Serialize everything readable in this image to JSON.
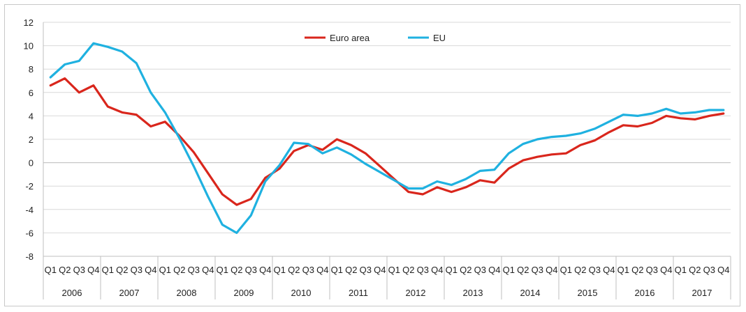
{
  "chart_data": {
    "type": "line",
    "title": "",
    "xlabel": "",
    "ylabel": "",
    "ylim": [
      -8,
      12
    ],
    "yticks": [
      -8,
      -6,
      -4,
      -2,
      0,
      2,
      4,
      6,
      8,
      10,
      12
    ],
    "grid": "horizontal",
    "legend_position": "top-center",
    "quarters": [
      "Q1",
      "Q2",
      "Q3",
      "Q4"
    ],
    "years": [
      "2006",
      "2007",
      "2008",
      "2009",
      "2010",
      "2011",
      "2012",
      "2013",
      "2014",
      "2015",
      "2016",
      "2017"
    ],
    "series": [
      {
        "name": "Euro area",
        "color": "#d9261c",
        "values": [
          6.6,
          7.2,
          6.0,
          6.6,
          4.8,
          4.3,
          4.1,
          3.1,
          3.5,
          2.3,
          0.9,
          -0.9,
          -2.7,
          -3.6,
          -3.1,
          -1.3,
          -0.5,
          1.0,
          1.5,
          1.1,
          2.0,
          1.5,
          0.8,
          -0.3,
          -1.4,
          -2.5,
          -2.7,
          -2.1,
          -2.5,
          -2.1,
          -1.5,
          -1.7,
          -0.5,
          0.2,
          0.5,
          0.7,
          0.8,
          1.5,
          1.9,
          2.6,
          3.2,
          3.1,
          3.4,
          4.0,
          3.8,
          3.7,
          4.0,
          4.2
        ]
      },
      {
        "name": "EU",
        "color": "#1fb1e0",
        "values": [
          7.3,
          8.4,
          8.7,
          10.2,
          9.9,
          9.5,
          8.5,
          6.0,
          4.3,
          2.1,
          -0.3,
          -2.9,
          -5.3,
          -6.0,
          -4.5,
          -1.6,
          -0.2,
          1.7,
          1.6,
          0.8,
          1.3,
          0.7,
          -0.1,
          -0.8,
          -1.5,
          -2.2,
          -2.2,
          -1.6,
          -1.9,
          -1.4,
          -0.7,
          -0.6,
          0.8,
          1.6,
          2.0,
          2.2,
          2.3,
          2.5,
          2.9,
          3.5,
          4.1,
          4.0,
          4.2,
          4.6,
          4.2,
          4.3,
          4.5,
          4.5
        ]
      }
    ]
  }
}
